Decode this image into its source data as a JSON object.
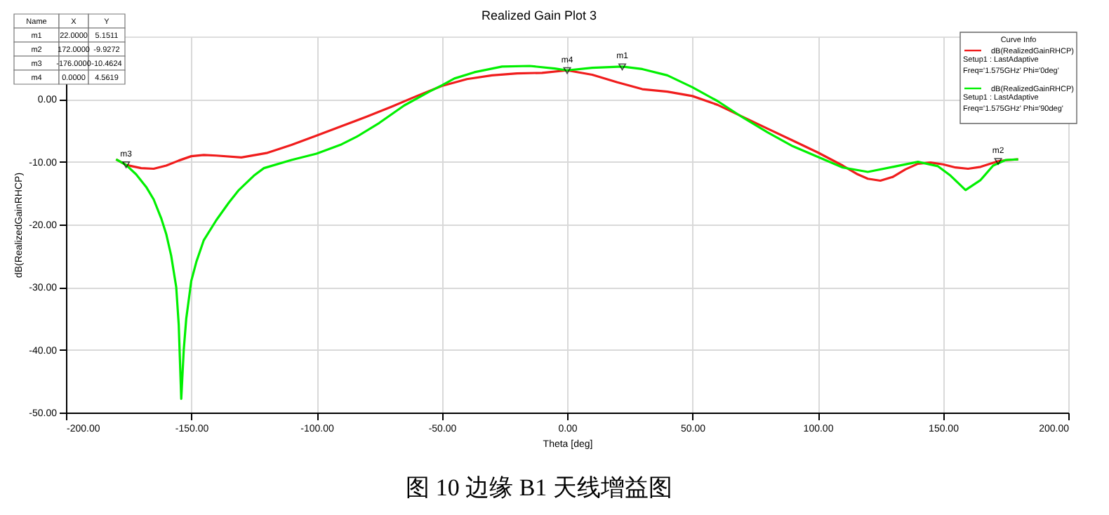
{
  "chart_data": {
    "type": "line",
    "title": "Realized Gain Plot 3",
    "xlabel": "Theta [deg]",
    "ylabel": "dB(RealizedGainRHCP)",
    "legend_title": "Curve Info",
    "legend": "top right",
    "grid": true,
    "marker": "none",
    "line_style": "solid",
    "xlim": [
      -200,
      200
    ],
    "ylim": [
      -50,
      10
    ],
    "xticks": [
      {
        "value": -200,
        "label": "-200.00"
      },
      {
        "value": -150,
        "label": "-150.00"
      },
      {
        "value": -100,
        "label": "-100.00"
      },
      {
        "value": -50,
        "label": "-50.00"
      },
      {
        "value": 0,
        "label": "0.00"
      },
      {
        "value": 50,
        "label": "50.00"
      },
      {
        "value": 100,
        "label": "100.00"
      },
      {
        "value": 150,
        "label": "150.00"
      },
      {
        "value": 200,
        "label": "200.00"
      }
    ],
    "yticks": [
      {
        "value": -50,
        "label": "-50.00"
      },
      {
        "value": -40,
        "label": "-40.00"
      },
      {
        "value": -30,
        "label": "-30.00"
      },
      {
        "value": -20,
        "label": "-20.00"
      },
      {
        "value": -10,
        "label": "-10.00"
      },
      {
        "value": 0,
        "label": "0.00"
      }
    ],
    "series": [
      {
        "name": "dB(RealizedGainRHCP)\nSetup1 : LastAdaptive\nFreq='1.575GHz' Phi='0deg'",
        "color": "#f01c1c",
        "x": [
          -180,
          -176,
          -170,
          -165,
          -160,
          -155,
          -150,
          -145,
          -140,
          -130,
          -120,
          -110,
          -100,
          -90,
          -80,
          -70,
          -60,
          -50,
          -40,
          -30,
          -20,
          -10,
          0,
          10,
          20,
          30,
          40,
          50,
          60,
          70,
          80,
          90,
          100,
          110,
          116,
          120,
          125,
          130,
          135,
          140,
          145,
          150,
          155,
          160,
          165,
          172,
          176,
          180
        ],
        "values": [
          -9.6,
          -10.5,
          -11.0,
          -11.1,
          -10.6,
          -9.8,
          -9.1,
          -8.9,
          -9.0,
          -9.3,
          -8.6,
          -7.3,
          -5.8,
          -4.3,
          -2.8,
          -1.2,
          0.5,
          2.1,
          3.2,
          3.8,
          4.1,
          4.2,
          4.6,
          3.9,
          2.7,
          1.6,
          1.2,
          0.5,
          -0.9,
          -2.8,
          -4.7,
          -6.6,
          -8.5,
          -10.6,
          -12.0,
          -12.7,
          -13.0,
          -12.4,
          -11.2,
          -10.3,
          -10.1,
          -10.4,
          -10.9,
          -11.1,
          -10.8,
          -9.9,
          -9.7,
          -9.6
        ]
      },
      {
        "name": "dB(RealizedGainRHCP)\nSetup1 : LastAdaptive\nFreq='1.575GHz' Phi='90deg'",
        "color": "#00f000",
        "x": [
          -180,
          -176,
          -172,
          -168,
          -165,
          -162,
          -160,
          -158,
          -156,
          -155,
          -154,
          -153,
          -152,
          -150,
          -148,
          -145,
          -140,
          -135,
          -131,
          -125,
          -121,
          -110,
          -100,
          -90,
          -84,
          -75,
          -65,
          -55,
          -50,
          -45,
          -37,
          -26,
          -15,
          -5,
          0,
          10,
          22,
          30,
          40,
          50,
          60,
          70,
          80,
          90,
          100,
          110,
          120,
          130,
          140,
          148,
          153,
          159,
          165,
          170,
          175,
          180
        ],
        "values": [
          -9.6,
          -10.5,
          -12,
          -14,
          -16,
          -19,
          -21.5,
          -25,
          -30,
          -36,
          -47.8,
          -40,
          -35,
          -29,
          -26,
          -22.5,
          -19.3,
          -16.5,
          -14.5,
          -12.2,
          -11,
          -9.7,
          -8.7,
          -7.2,
          -6.0,
          -3.8,
          -1.0,
          1.2,
          2.2,
          3.3,
          4.3,
          5.2,
          5.3,
          4.9,
          4.6,
          5.0,
          5.2,
          4.8,
          3.8,
          1.9,
          -0.3,
          -2.9,
          -5.3,
          -7.5,
          -9.2,
          -10.9,
          -11.6,
          -10.8,
          -10.0,
          -10.7,
          -12.2,
          -14.5,
          -12.9,
          -10.6,
          -9.7,
          -9.6
        ]
      },
      {
        "type": "scatter",
        "marker": "triangle",
        "color": "#000000",
        "x": [
          22,
          172,
          -176,
          0
        ],
        "values": [
          5.1511,
          -9.9272,
          -10.4624,
          4.5619
        ]
      }
    ],
    "annotations": [
      {
        "text": "m1",
        "x": 22,
        "y": 5.1511
      },
      {
        "text": "m2",
        "x": 172,
        "y": -9.9272
      },
      {
        "text": "m3",
        "x": -176,
        "y": -10.4624
      },
      {
        "text": "m4",
        "x": 0,
        "y": 4.5619
      },
      "Name",
      "X",
      "Y",
      "m1",
      "22.0000",
      "5.1511",
      "m2",
      "172.0000",
      "-9.9272",
      "m3",
      "-176.0000",
      "-10.4624",
      "m4",
      "0.0000",
      "4.5619",
      "图 10  边缘 B1 天线增益图"
    ]
  }
}
